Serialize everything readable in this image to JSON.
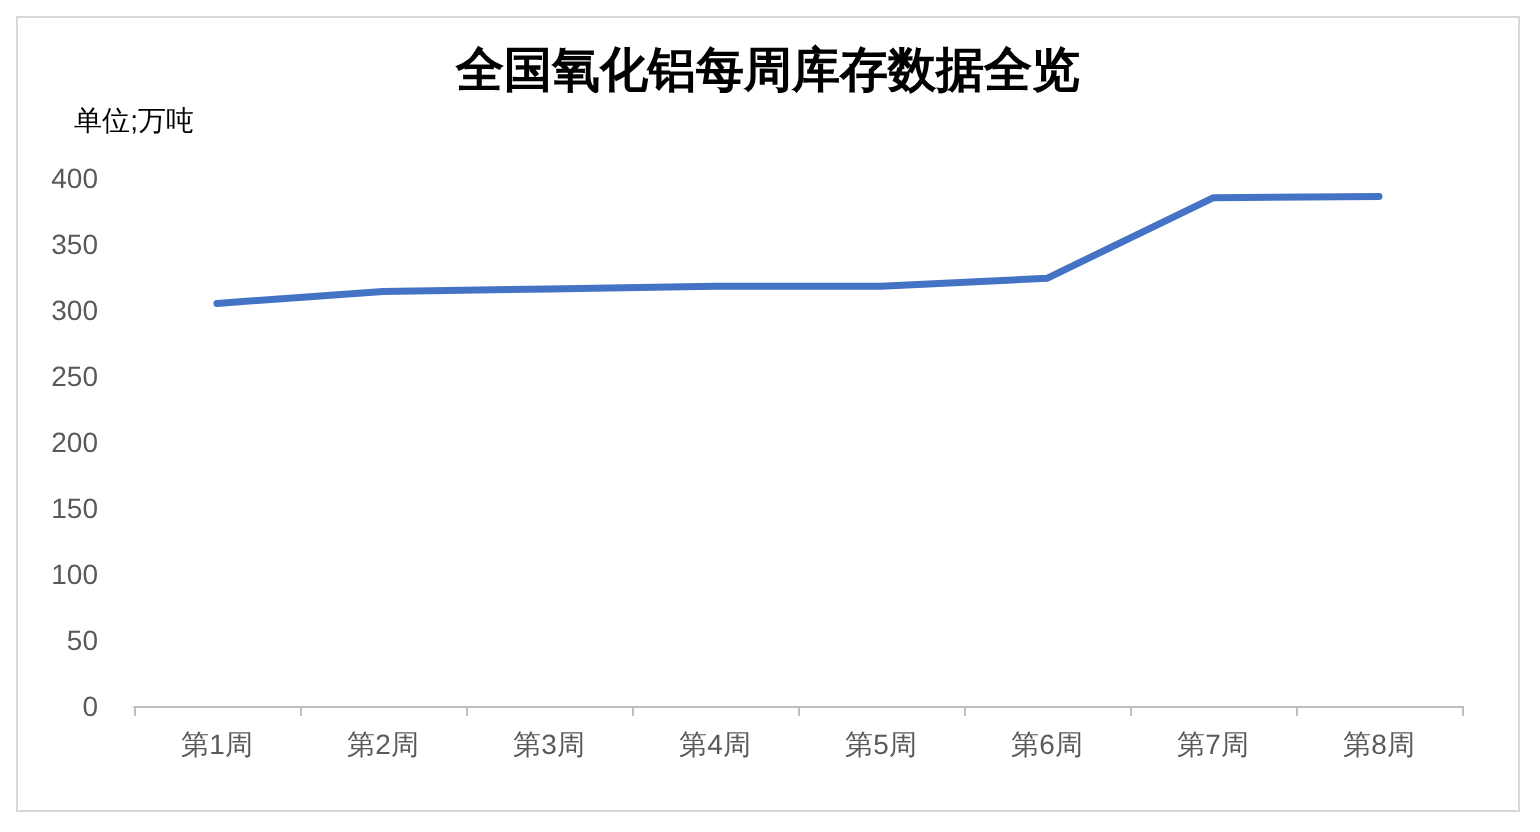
{
  "chart_data": {
    "type": "line",
    "title": "全国氧化铝每周库存数据全览",
    "ylabel": "单位;万吨",
    "categories": [
      "第1周",
      "第2周",
      "第3周",
      "第4周",
      "第5周",
      "第6周",
      "第7周",
      "第8周"
    ],
    "series": [
      {
        "color": "#4472c4",
        "values": [
          305,
          314,
          316,
          318,
          318,
          324,
          385,
          386
        ]
      }
    ],
    "ylim": [
      0,
      400
    ],
    "yticks": [
      0,
      50,
      100,
      150,
      200,
      250,
      300,
      350,
      400
    ],
    "grid": false,
    "marker": "none",
    "line_style": "solid"
  }
}
